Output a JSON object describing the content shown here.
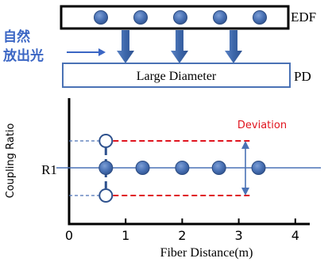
{
  "labels": {
    "fiber": "EDF",
    "spontaneous_line1": "自然",
    "spontaneous_line2": "放出光",
    "detector_box": "Large Diameter",
    "detector": "PD",
    "y_axis": "Coupling Ratio",
    "r1": "R1",
    "deviation": "Deviation",
    "x_axis": "Fiber Distance(m)"
  },
  "colors": {
    "dot": "#4a72b5",
    "arrow": "#4a72b5",
    "spontaneous_text": "#3b66c4",
    "deviation": "#e0141e",
    "axis": "#000000",
    "r1_line": "#4a72b5"
  },
  "chart_data": {
    "type": "scatter",
    "xlabel": "Fiber Distance(m)",
    "ylabel": "Coupling Ratio",
    "xlim": [
      0,
      4.5
    ],
    "x_ticks": [
      "0",
      "1",
      "2",
      "3",
      "4"
    ],
    "r1_label": "R1",
    "points": [
      {
        "x": 0.65,
        "y": 0
      },
      {
        "x": 1.3,
        "y": 0
      },
      {
        "x": 2.0,
        "y": 0
      },
      {
        "x": 2.65,
        "y": 0
      },
      {
        "x": 3.35,
        "y": 0
      }
    ],
    "deviation_label": "Deviation"
  },
  "fiber_dots": 5,
  "pd_arrows": 3
}
